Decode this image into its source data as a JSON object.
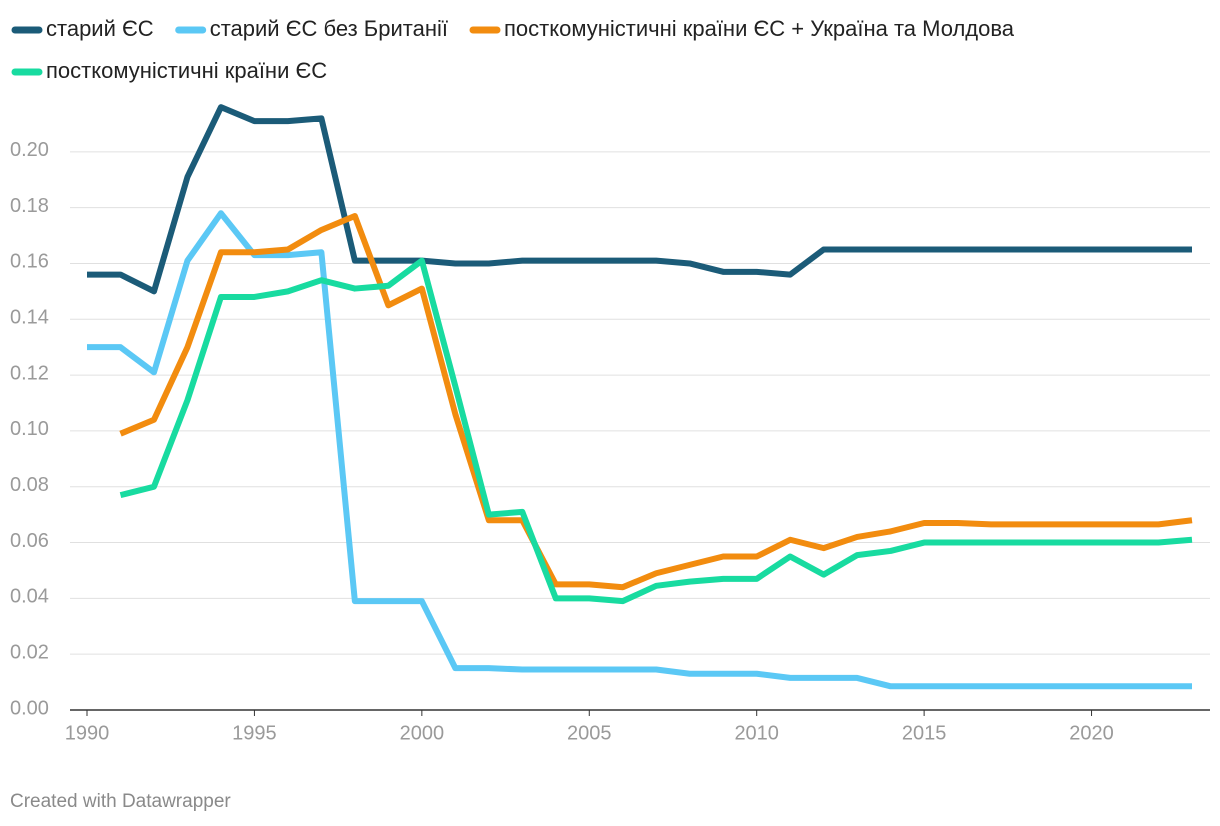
{
  "chart_data": {
    "type": "line",
    "x": [
      1990,
      1991,
      1992,
      1993,
      1994,
      1995,
      1996,
      1997,
      1998,
      1999,
      2000,
      2001,
      2002,
      2003,
      2004,
      2005,
      2006,
      2007,
      2008,
      2009,
      2010,
      2011,
      2012,
      2013,
      2014,
      2015,
      2016,
      2017,
      2018,
      2019,
      2020,
      2021,
      2022,
      2023
    ],
    "series": [
      {
        "name": "старий ЄС",
        "color": "#1b5b78",
        "values": [
          0.156,
          0.156,
          0.15,
          0.191,
          0.216,
          0.211,
          0.211,
          0.212,
          0.161,
          0.161,
          0.161,
          0.16,
          0.16,
          0.161,
          0.161,
          0.161,
          0.161,
          0.161,
          0.16,
          0.157,
          0.157,
          0.156,
          0.165,
          0.165,
          0.165,
          0.165,
          0.165,
          0.165,
          0.165,
          0.165,
          0.165,
          0.165,
          0.165,
          0.165
        ]
      },
      {
        "name": "старий ЄС без Британії",
        "color": "#5bc8f5",
        "values": [
          0.13,
          0.13,
          0.121,
          0.161,
          0.178,
          0.163,
          0.163,
          0.164,
          0.039,
          0.039,
          0.039,
          0.015,
          0.015,
          0.0145,
          0.0145,
          0.0145,
          0.0145,
          0.0145,
          0.013,
          0.013,
          0.013,
          0.0115,
          0.0115,
          0.0115,
          0.0085,
          0.0085,
          0.0085,
          0.0085,
          0.0085,
          0.0085,
          0.0085,
          0.0085,
          0.0085,
          0.0085
        ]
      },
      {
        "name": "посткомуністичні країни ЄС + Україна та Молдова",
        "color": "#f28c0f",
        "values": [
          null,
          0.099,
          0.104,
          0.13,
          0.164,
          0.164,
          0.165,
          0.172,
          0.177,
          0.145,
          0.151,
          0.106,
          0.068,
          0.068,
          0.045,
          0.045,
          0.044,
          0.049,
          0.052,
          0.055,
          0.055,
          0.061,
          0.058,
          0.062,
          0.064,
          0.067,
          0.067,
          0.0665,
          0.0665,
          0.0665,
          0.0665,
          0.0665,
          0.0665,
          0.068
        ]
      },
      {
        "name": "посткомуністичні країни ЄС",
        "color": "#18dba0",
        "values": [
          null,
          0.077,
          0.08,
          0.111,
          0.148,
          0.148,
          0.15,
          0.154,
          0.151,
          0.152,
          0.161,
          0.116,
          0.07,
          0.071,
          0.04,
          0.04,
          0.039,
          0.0445,
          0.046,
          0.047,
          0.047,
          0.055,
          0.0485,
          0.0555,
          0.057,
          0.06,
          0.06,
          0.06,
          0.06,
          0.06,
          0.06,
          0.06,
          0.06,
          0.061
        ]
      }
    ],
    "xlim": [
      1990,
      2023
    ],
    "xticks": [
      1990,
      1995,
      2000,
      2005,
      2010,
      2015,
      2020
    ],
    "ylim": [
      0,
      0.22
    ],
    "yticks": [
      {
        "value": 0,
        "label": "0.00"
      },
      {
        "value": 0.02,
        "label": "0.02"
      },
      {
        "value": 0.04,
        "label": "0.04"
      },
      {
        "value": 0.06,
        "label": "0.06"
      },
      {
        "value": 0.08,
        "label": "0.08"
      },
      {
        "value": 0.1,
        "label": "0.10"
      },
      {
        "value": 0.12,
        "label": "0.12"
      },
      {
        "value": 0.14,
        "label": "0.14"
      },
      {
        "value": 0.16,
        "label": "0.16"
      },
      {
        "value": 0.18,
        "label": "0.18"
      },
      {
        "value": 0.2,
        "label": "0.20"
      }
    ],
    "grid": true,
    "legend": "top",
    "footer": "Created with Datawrapper"
  }
}
